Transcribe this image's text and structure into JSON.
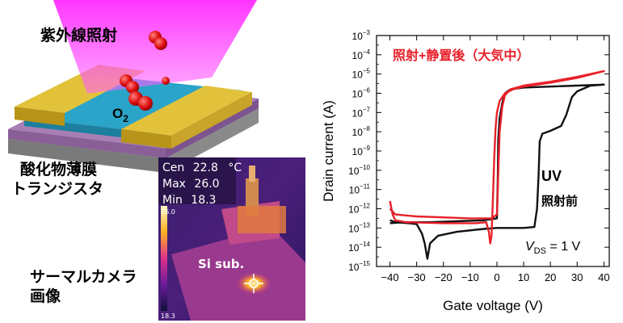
{
  "labels": {
    "uv_irradiation": "紫外線照射",
    "o2": "O",
    "o2_sub": "2",
    "oxide_tft_line1": "酸化物薄膜",
    "oxide_tft_line2": "トランジスタ",
    "thermal_camera_line1": "サーマルカメラ",
    "thermal_camera_line2": "画像",
    "si_sub": "Si sub."
  },
  "thermal": {
    "rows": [
      {
        "label": "Cen",
        "value": "22.8",
        "unit": "°C"
      },
      {
        "label": "Max",
        "value": "26.0",
        "unit": ""
      },
      {
        "label": "Min",
        "value": "18.3",
        "unit": ""
      }
    ],
    "scale_top": "26.0",
    "scale_bottom": "18.3"
  },
  "chart_data": {
    "type": "line",
    "xlabel": "Gate voltage (V)",
    "ylabel": "Drain current (A)",
    "yscale": "log",
    "xlim": [
      -45,
      42
    ],
    "ylim_exp": [
      -15,
      -3
    ],
    "x_ticks": [
      -40,
      -30,
      -20,
      -10,
      0,
      10,
      20,
      30,
      40
    ],
    "y_ticks": [
      {
        "exp": -3,
        "label": "10",
        "sup": "−3"
      },
      {
        "exp": -4,
        "label": "10",
        "sup": "−4"
      },
      {
        "exp": -5,
        "label": "10",
        "sup": "−5"
      },
      {
        "exp": -6,
        "label": "10",
        "sup": "−6"
      },
      {
        "exp": -7,
        "label": "10",
        "sup": "−7"
      },
      {
        "exp": -8,
        "label": "10",
        "sup": "−8"
      },
      {
        "exp": -9,
        "label": "10",
        "sup": "−9"
      },
      {
        "exp": -10,
        "label": "10",
        "sup": "−10"
      },
      {
        "exp": -11,
        "label": "10",
        "sup": "−11"
      },
      {
        "exp": -12,
        "label": "10",
        "sup": "−12"
      },
      {
        "exp": -13,
        "label": "10",
        "sup": "−13"
      },
      {
        "exp": -14,
        "label": "10",
        "sup": "−14"
      },
      {
        "exp": -15,
        "label": "10",
        "sup": "−15"
      }
    ],
    "series": [
      {
        "name": "照射+静置後（大気中）",
        "color": "#e8202a",
        "points": [
          [
            -40,
            -11.6
          ],
          [
            -39,
            -12.3
          ],
          [
            -38,
            -12.6
          ],
          [
            -34,
            -12.7
          ],
          [
            -20,
            -12.75
          ],
          [
            -8,
            -12.75
          ],
          [
            -4,
            -12.7
          ],
          [
            -3,
            -13.2
          ],
          [
            -2.5,
            -13.8
          ],
          [
            -2,
            -13.4
          ],
          [
            -1.5,
            -11.5
          ],
          [
            -1,
            -9.3
          ],
          [
            -0.5,
            -7.8
          ],
          [
            0,
            -7.0
          ],
          [
            1,
            -6.4
          ],
          [
            3,
            -6.0
          ],
          [
            6,
            -5.8
          ],
          [
            10,
            -5.65
          ],
          [
            20,
            -5.45
          ],
          [
            30,
            -5.2
          ],
          [
            40,
            -4.85
          ],
          [
            30,
            -5.15
          ],
          [
            20,
            -5.4
          ],
          [
            10,
            -5.6
          ],
          [
            5,
            -5.8
          ],
          [
            3,
            -6.1
          ],
          [
            2,
            -6.7
          ],
          [
            1,
            -8.0
          ],
          [
            0.5,
            -10.2
          ],
          [
            0.2,
            -11.6
          ],
          [
            0,
            -12.3
          ],
          [
            -2,
            -12.5
          ],
          [
            -10,
            -12.5
          ],
          [
            -20,
            -12.45
          ],
          [
            -30,
            -12.4
          ],
          [
            -38,
            -12.3
          ],
          [
            -40,
            -12.0
          ]
        ]
      },
      {
        "name": "UV 照射前",
        "color": "#111111",
        "points": [
          [
            -40,
            -12.6
          ],
          [
            -38,
            -12.7
          ],
          [
            -33,
            -12.75
          ],
          [
            -30,
            -12.8
          ],
          [
            -28,
            -13.3
          ],
          [
            -27,
            -13.8
          ],
          [
            -26,
            -14.6
          ],
          [
            -25,
            -13.8
          ],
          [
            -22,
            -13.4
          ],
          [
            -15,
            -13.2
          ],
          [
            -5,
            -13.05
          ],
          [
            0,
            -13.0
          ],
          [
            10,
            -13.0
          ],
          [
            14,
            -12.95
          ],
          [
            15,
            -12.0
          ],
          [
            15.6,
            -10.2
          ],
          [
            16,
            -8.5
          ],
          [
            17,
            -8.1
          ],
          [
            20,
            -7.95
          ],
          [
            24,
            -7.7
          ],
          [
            26,
            -7.1
          ],
          [
            28,
            -6.2
          ],
          [
            30,
            -5.9
          ],
          [
            35,
            -5.6
          ],
          [
            40,
            -5.55
          ],
          [
            30,
            -5.6
          ],
          [
            20,
            -5.65
          ],
          [
            10,
            -5.7
          ],
          [
            5,
            -5.8
          ],
          [
            3,
            -6.0
          ],
          [
            2,
            -6.5
          ],
          [
            1,
            -7.3
          ],
          [
            0.5,
            -8.4
          ],
          [
            0.3,
            -10.5
          ],
          [
            0,
            -12.5
          ],
          [
            -5,
            -12.6
          ],
          [
            -15,
            -12.65
          ],
          [
            -25,
            -12.7
          ],
          [
            -35,
            -12.7
          ],
          [
            -40,
            -12.75
          ]
        ]
      }
    ],
    "legend_red": "照射+静置後（大気中）",
    "annotation_uv": "UV",
    "annotation_before": "照射前",
    "vds_v": "V",
    "vds_sub": "DS",
    "vds_rest": " = 1 V"
  }
}
